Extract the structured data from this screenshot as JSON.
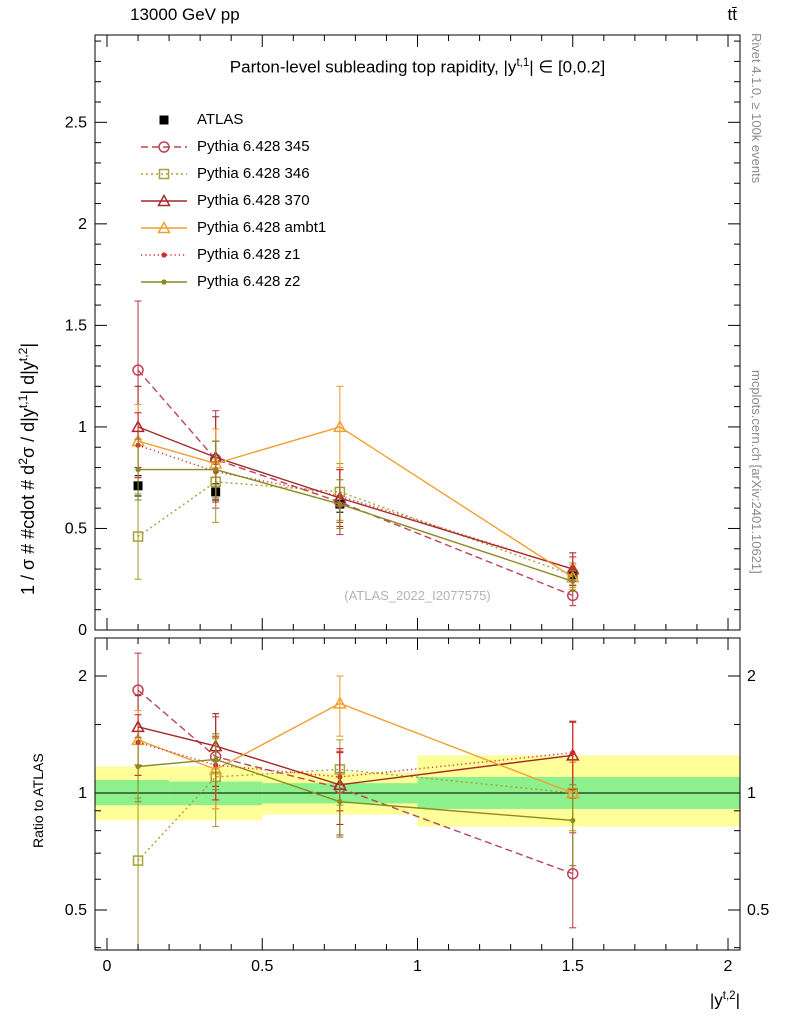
{
  "header": {
    "left": "13000 GeV pp",
    "right": "tt̄"
  },
  "right_margin": {
    "top": "Rivet 4.1.0, ≥ 100k events",
    "bottom": "mcplots.cern.ch [arXiv:2401.10621]"
  },
  "labels": {
    "title_segments": [
      {
        "t": "Parton-level subleading top rapidity, |y"
      },
      {
        "t": "t,1",
        "s": true
      },
      {
        "t": "| ∈ [0,0.2]"
      }
    ],
    "y_top_segments": [
      {
        "t": "1 / σ # #cdot # d"
      },
      {
        "t": "2",
        "s": true
      },
      {
        "t": "σ / d|y"
      },
      {
        "t": "t,1",
        "s": true
      },
      {
        "t": "| d|y"
      },
      {
        "t": "t,2",
        "s": true
      },
      {
        "t": "|"
      }
    ],
    "x_segments": [
      {
        "t": "|y"
      },
      {
        "t": "t,2",
        "s": true
      },
      {
        "t": "|"
      }
    ],
    "y_ratio": "Ratio to ATLAS",
    "watermark": "(ATLAS_2022_I2077575)"
  },
  "axes": {
    "x": {
      "range": [
        0,
        2
      ],
      "major_ticks": [
        0,
        0.5,
        1,
        1.5,
        2
      ],
      "tick_labels": [
        "0",
        "0.5",
        "1",
        "1.5",
        "2"
      ],
      "minor_step": 0.1
    },
    "y_top": {
      "range": [
        0,
        2.93
      ],
      "major_ticks": [
        0,
        0.5,
        1,
        1.5,
        2,
        2.5
      ],
      "tick_labels": [
        "0",
        "0.5",
        "1",
        "1.5",
        "2",
        "2.5"
      ],
      "minor_step": 0.1
    },
    "y_ratio": {
      "scale": "log",
      "range": [
        0.394,
        2.505
      ],
      "major_ticks": [
        0.5,
        1,
        2
      ],
      "tick_labels": [
        "0.5",
        "1",
        "2"
      ],
      "minor_ticks": [
        0.4,
        0.6,
        0.7,
        0.8,
        0.9,
        1.5
      ]
    }
  },
  "chart_data": [
    {
      "type": "line",
      "panel": "main",
      "title": "Parton-level subleading top rapidity, |y^{t,1}| ∈ [0,0.2]",
      "xlabel": "|y^{t,2}|",
      "ylabel": "1 / σ # #cdot # d²σ / d|y^{t,1}| d|y^{t,2}|",
      "xlim": [
        0,
        2
      ],
      "ylim": [
        0,
        2.93
      ],
      "legend_position": "top-left",
      "x": [
        0.1,
        0.35,
        0.75,
        1.5
      ],
      "series": [
        {
          "name": "ATLAS",
          "color": "#000000",
          "marker": "square-filled",
          "line": "none",
          "values": [
            0.71,
            0.68,
            0.62,
            0.27
          ],
          "errors": [
            0.05,
            0.04,
            0.04,
            0.02
          ]
        },
        {
          "name": "Pythia 6.428 345",
          "color": "#bb4455",
          "marker": "circle-open",
          "line": "dashed",
          "values": [
            1.28,
            0.84,
            0.63,
            0.17
          ],
          "errors": [
            0.34,
            0.24,
            0.16,
            0.05
          ]
        },
        {
          "name": "Pythia 6.428 346",
          "color": "#a8a038",
          "marker": "square-open",
          "line": "dotted",
          "values": [
            0.46,
            0.73,
            0.68,
            0.27
          ],
          "errors": [
            0.21,
            0.2,
            0.14,
            0.06
          ]
        },
        {
          "name": "Pythia 6.428 370",
          "color": "#a22a2a",
          "marker": "triangle-open",
          "line": "solid",
          "values": [
            1.0,
            0.85,
            0.65,
            0.3
          ],
          "errors": [
            0.2,
            0.2,
            0.14,
            0.08
          ]
        },
        {
          "name": "Pythia 6.428 ambt1",
          "color": "#f0a030",
          "marker": "triangle-open",
          "line": "solid",
          "values": [
            0.93,
            0.82,
            1.0,
            0.26
          ],
          "errors": [
            0.18,
            0.17,
            0.2,
            0.06
          ]
        },
        {
          "name": "Pythia 6.428 z1",
          "color": "#d42a2a",
          "marker": "dot-filled",
          "line": "dotted-fine",
          "values": [
            0.91,
            0.78,
            0.66,
            0.3
          ],
          "errors": [
            0.16,
            0.15,
            0.13,
            0.06
          ]
        },
        {
          "name": "Pythia 6.428 z2",
          "color": "#8a8a20",
          "marker": "dot-filled",
          "line": "solid",
          "values": [
            0.79,
            0.79,
            0.62,
            0.24
          ],
          "errors": [
            0.15,
            0.14,
            0.12,
            0.05
          ]
        }
      ]
    },
    {
      "type": "line",
      "panel": "ratio",
      "ylabel": "Ratio to ATLAS",
      "yscale": "log",
      "ylim": [
        0.394,
        2.505
      ],
      "x": [
        0.1,
        0.35,
        0.75,
        1.5
      ],
      "series": [
        {
          "name": "Pythia 6.428 345",
          "color": "#bb4455",
          "marker": "circle-open",
          "line": "dashed",
          "values": [
            1.84,
            1.24,
            1.03,
            0.62
          ],
          "errors": [
            0.45,
            0.33,
            0.25,
            0.17
          ]
        },
        {
          "name": "Pythia 6.428 346",
          "color": "#a8a038",
          "marker": "square-open",
          "line": "dotted",
          "values": [
            0.67,
            1.1,
            1.15,
            1.0
          ],
          "errors": [
            0.3,
            0.28,
            0.22,
            0.2
          ]
        },
        {
          "name": "Pythia 6.428 370",
          "color": "#a22a2a",
          "marker": "triangle-open",
          "line": "solid",
          "values": [
            1.48,
            1.32,
            1.05,
            1.25
          ],
          "errors": [
            0.3,
            0.28,
            0.22,
            0.28
          ]
        },
        {
          "name": "Pythia 6.428 ambt1",
          "color": "#f0a030",
          "marker": "triangle-open",
          "line": "solid",
          "values": [
            1.37,
            1.15,
            1.7,
            1.0
          ],
          "errors": [
            0.26,
            0.24,
            0.3,
            0.2
          ]
        },
        {
          "name": "Pythia 6.428 z1",
          "color": "#d42a2a",
          "marker": "dot-filled",
          "line": "dotted-fine",
          "values": [
            1.35,
            1.18,
            1.1,
            1.27
          ],
          "errors": [
            0.24,
            0.22,
            0.2,
            0.25
          ]
        },
        {
          "name": "Pythia 6.428 z2",
          "color": "#8a8a20",
          "marker": "dot-filled",
          "line": "solid",
          "values": [
            1.17,
            1.22,
            0.95,
            0.85
          ],
          "errors": [
            0.22,
            0.2,
            0.18,
            0.2
          ]
        }
      ],
      "bands": {
        "edges": [
          0,
          0.2,
          0.5,
          1,
          2
        ],
        "yellow": [
          [
            0.85,
            1.17
          ],
          [
            0.85,
            1.17
          ],
          [
            0.88,
            1.13
          ],
          [
            0.82,
            1.25
          ]
        ],
        "green": [
          [
            0.93,
            1.08
          ],
          [
            0.93,
            1.07
          ],
          [
            0.94,
            1.06
          ],
          [
            0.91,
            1.1
          ]
        ],
        "yellow_color": "#ffff99",
        "green_color": "#8cf08c",
        "reference_line": 1
      }
    }
  ]
}
